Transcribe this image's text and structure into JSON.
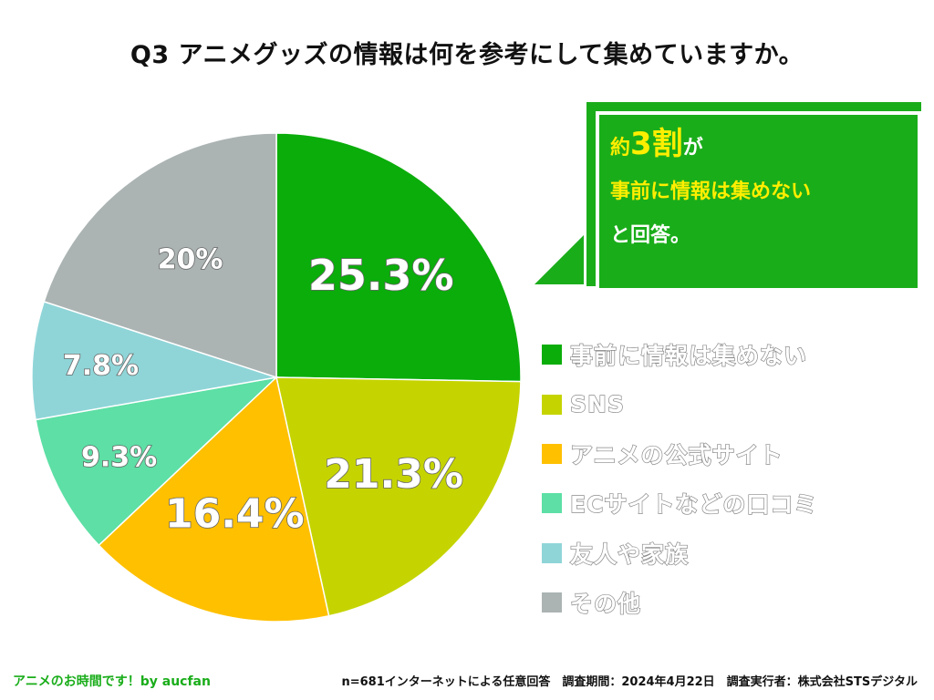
{
  "title": "Q3 アニメグッズの情報は何を参考にして集めていますか。",
  "chart_data": {
    "type": "pie",
    "title": "Q3 アニメグッズの情報は何を参考にして集めていますか。",
    "categories": [
      "事前に情報は集めない",
      "SNS",
      "アニメの公式サイト",
      "ECサイトなどの口コミ",
      "友人や家族",
      "その他"
    ],
    "values": [
      25.3,
      21.3,
      16.4,
      9.3,
      7.8,
      20
    ],
    "labels": [
      "25.3%",
      "21.3%",
      "16.4%",
      "9.3%",
      "7.8%",
      "20%"
    ],
    "colors": [
      "#0aad0a",
      "#c5d400",
      "#ffc000",
      "#5ddfa5",
      "#8fd5d8",
      "#abb3b3"
    ],
    "legend_position": "right"
  },
  "callout": {
    "line1_prefix": "約",
    "line1_highlight": "3割",
    "line1_suffix": "が",
    "line2": "事前に情報は集めない",
    "line3": "と回答。",
    "color": "#1aad1a",
    "highlight_color": "#ffee00"
  },
  "footer": {
    "left": "アニメのお時間です！by aucfan",
    "right": "n=681インターネットによる任意回答　調査期間：2024年4月22日　調査実行者：株式会社STSデジタル"
  }
}
